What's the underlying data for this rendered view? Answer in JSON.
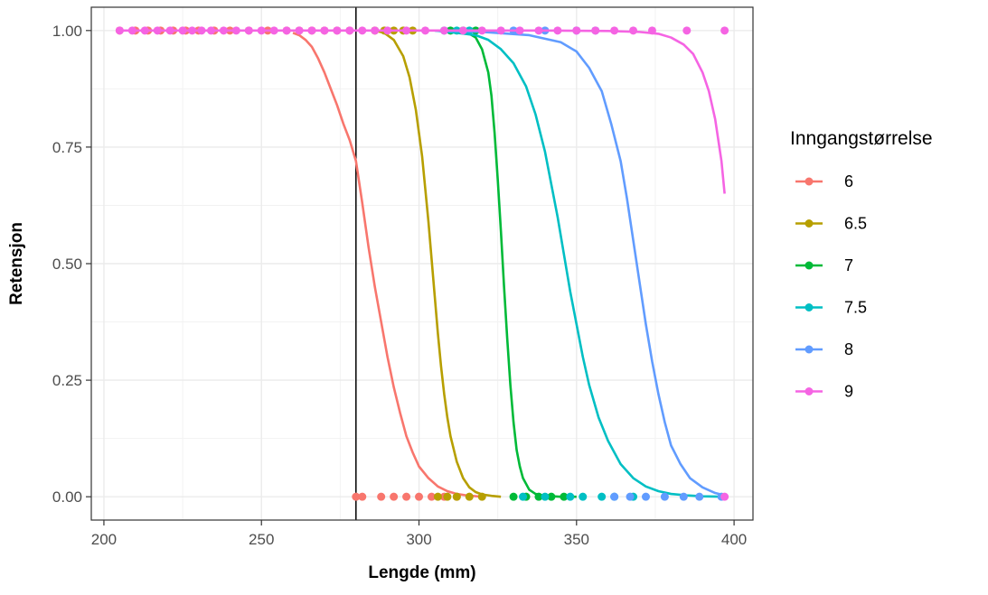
{
  "chart_data": {
    "type": "line",
    "title": "",
    "xlabel": "Lengde (mm)",
    "ylabel": "Retensjon",
    "xlim": [
      196,
      406
    ],
    "ylim": [
      -0.05,
      1.05
    ],
    "xticks": [
      200,
      250,
      300,
      350,
      400
    ],
    "yticks": [
      0.0,
      0.25,
      0.5,
      0.75,
      1.0
    ],
    "xtick_labels": [
      "200",
      "250",
      "300",
      "350",
      "400"
    ],
    "ytick_labels": [
      "0.00",
      "0.25",
      "0.50",
      "0.75",
      "1.00"
    ],
    "grid": true,
    "vline": 280,
    "legend": {
      "title": "Inngangstørrelse",
      "position": "right"
    },
    "series": [
      {
        "name": "6",
        "color": "#F8766D",
        "curve_x": [
          260,
          262,
          264,
          266,
          268,
          270,
          272,
          274,
          276,
          278,
          280,
          282,
          284,
          286,
          288,
          290,
          292,
          294,
          296,
          298,
          300,
          303,
          306,
          309,
          312,
          315,
          320
        ],
        "curve_y": [
          0.995,
          0.99,
          0.98,
          0.965,
          0.94,
          0.91,
          0.875,
          0.84,
          0.8,
          0.765,
          0.72,
          0.63,
          0.535,
          0.45,
          0.375,
          0.3,
          0.235,
          0.18,
          0.13,
          0.095,
          0.065,
          0.04,
          0.022,
          0.012,
          0.006,
          0.003,
          0.0
        ],
        "points_at_1_x": [
          205,
          210,
          214,
          218,
          222,
          226,
          230,
          235,
          240,
          246,
          252,
          258,
          262,
          266,
          270,
          274,
          278
        ],
        "points_at_0_x": [
          280,
          282,
          288,
          292,
          296,
          300,
          304,
          308,
          312
        ]
      },
      {
        "name": "6.5",
        "color": "#B79F00",
        "curve_x": [
          286,
          289,
          292,
          295,
          297,
          299,
          301,
          302,
          303,
          304,
          305,
          306,
          307,
          308,
          309,
          310,
          312,
          314,
          316,
          318,
          320,
          323,
          326
        ],
        "curve_y": [
          1.0,
          0.995,
          0.98,
          0.945,
          0.9,
          0.83,
          0.73,
          0.66,
          0.59,
          0.51,
          0.43,
          0.35,
          0.28,
          0.22,
          0.17,
          0.13,
          0.075,
          0.04,
          0.02,
          0.01,
          0.005,
          0.002,
          0.0
        ],
        "points_at_1_x": [
          286,
          289,
          292,
          295,
          298
        ],
        "points_at_0_x": [
          306,
          309,
          312,
          316,
          320
        ]
      },
      {
        "name": "7",
        "color": "#00BA38",
        "curve_x": [
          310,
          315,
          318,
          320,
          322,
          323,
          324,
          325,
          326,
          327,
          328,
          329,
          330,
          331,
          332,
          333,
          335,
          337,
          340,
          345,
          350
        ],
        "curve_y": [
          1.0,
          0.997,
          0.985,
          0.96,
          0.91,
          0.86,
          0.78,
          0.68,
          0.57,
          0.45,
          0.34,
          0.24,
          0.16,
          0.1,
          0.065,
          0.04,
          0.015,
          0.006,
          0.002,
          0.0,
          0.0
        ],
        "points_at_1_x": [
          310,
          314,
          318
        ],
        "points_at_0_x": [
          330,
          334,
          338,
          342,
          346
        ]
      },
      {
        "name": "7.5",
        "color": "#00BFC4",
        "curve_x": [
          305,
          312,
          318,
          322,
          326,
          330,
          334,
          337,
          340,
          342,
          344,
          346,
          348,
          350,
          352,
          354,
          357,
          360,
          364,
          368,
          372,
          376,
          380,
          385,
          390,
          397
        ],
        "curve_y": [
          1.0,
          0.995,
          0.99,
          0.98,
          0.96,
          0.93,
          0.88,
          0.82,
          0.74,
          0.67,
          0.6,
          0.52,
          0.44,
          0.37,
          0.3,
          0.24,
          0.17,
          0.12,
          0.07,
          0.04,
          0.022,
          0.012,
          0.006,
          0.003,
          0.001,
          0.0
        ],
        "points_at_1_x": [
          308,
          312,
          316
        ],
        "points_at_0_x": [
          333,
          340,
          348,
          352,
          358,
          362,
          368
        ]
      },
      {
        "name": "8",
        "color": "#619CFF",
        "curve_x": [
          305,
          320,
          335,
          345,
          350,
          354,
          358,
          361,
          364,
          366,
          368,
          370,
          372,
          374,
          376,
          378,
          380,
          383,
          386,
          390,
          394,
          397
        ],
        "curve_y": [
          1.0,
          0.997,
          0.99,
          0.975,
          0.955,
          0.92,
          0.87,
          0.8,
          0.72,
          0.64,
          0.55,
          0.46,
          0.37,
          0.29,
          0.22,
          0.16,
          0.11,
          0.07,
          0.04,
          0.02,
          0.008,
          0.003
        ],
        "points_at_1_x": [
          330,
          340,
          350,
          356
        ],
        "points_at_0_x": [
          362,
          367,
          372,
          378,
          384,
          389,
          396
        ]
      },
      {
        "name": "9",
        "color": "#F564E3",
        "curve_x": [
          205,
          250,
          300,
          340,
          360,
          370,
          376,
          380,
          384,
          387,
          390,
          392,
          394,
          396,
          397
        ],
        "curve_y": [
          1.0,
          1.0,
          1.0,
          1.0,
          0.999,
          0.997,
          0.993,
          0.985,
          0.97,
          0.95,
          0.91,
          0.87,
          0.81,
          0.72,
          0.65
        ],
        "points_at_1_x": [
          205,
          209,
          213,
          217,
          221,
          225,
          228,
          231,
          234,
          238,
          242,
          246,
          250,
          254,
          258,
          262,
          266,
          270,
          274,
          278,
          282,
          286,
          290,
          296,
          302,
          308,
          314,
          320,
          326,
          332,
          338,
          344,
          350,
          356,
          362,
          368,
          374,
          385,
          397
        ],
        "points_at_0_x": [
          397
        ]
      }
    ]
  }
}
